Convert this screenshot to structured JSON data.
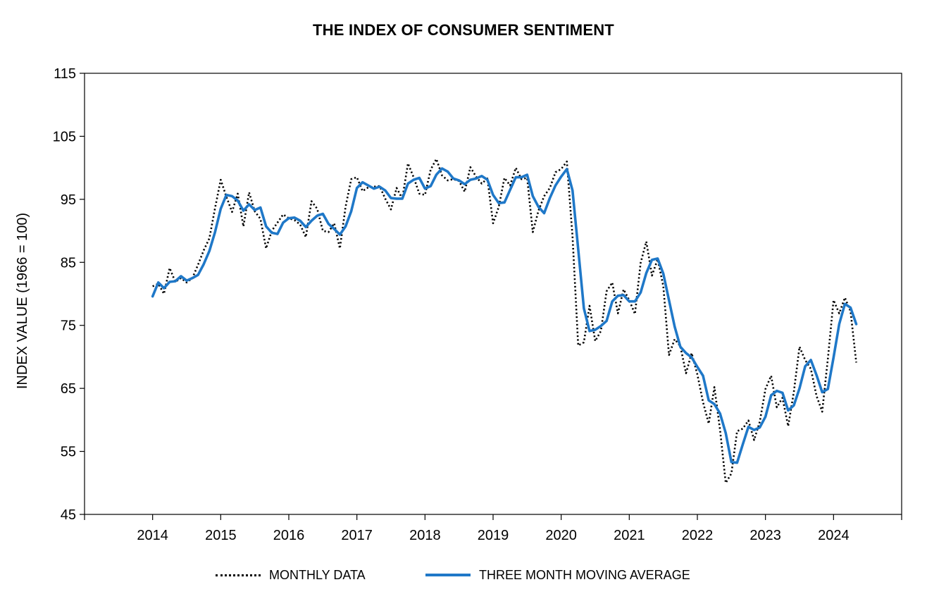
{
  "chart_data": {
    "type": "line",
    "title": "THE INDEX OF CONSUMER SENTIMENT",
    "ylabel": "INDEX VALUE (1966 = 100)",
    "xlabel": "",
    "ylim": [
      45,
      115
    ],
    "xlim": [
      2013.0,
      2025.0
    ],
    "yticks": [
      "45",
      "55",
      "65",
      "75",
      "85",
      "95",
      "105",
      "115"
    ],
    "xticks": [
      "2014",
      "2015",
      "2016",
      "2017",
      "2018",
      "2019",
      "2020",
      "2021",
      "2022",
      "2023",
      "2024"
    ],
    "grid": false,
    "legend_position": "bottom",
    "colors": {
      "monthly": "#000000",
      "moving_average": "#1f78c8"
    },
    "series": [
      {
        "name": "MONTHLY DATA",
        "style": "dotted",
        "color": "#000000",
        "x_start": "2014-01",
        "values": [
          81.2,
          81.6,
          80.0,
          84.1,
          81.9,
          82.5,
          81.8,
          82.5,
          84.6,
          86.9,
          88.8,
          93.6,
          98.1,
          95.4,
          93.0,
          95.9,
          90.7,
          96.1,
          93.1,
          91.9,
          87.2,
          90.0,
          91.3,
          92.6,
          92.0,
          91.7,
          91.0,
          89.0,
          94.7,
          93.5,
          90.0,
          89.8,
          91.2,
          87.2,
          93.8,
          98.2,
          98.5,
          96.3,
          96.9,
          97.0,
          97.1,
          95.1,
          93.4,
          96.8,
          95.1,
          100.7,
          98.5,
          95.9,
          95.7,
          99.7,
          101.4,
          98.8,
          98.0,
          98.2,
          97.9,
          96.2,
          100.1,
          98.6,
          97.5,
          98.3,
          91.2,
          93.8,
          98.4,
          97.2,
          100.0,
          98.2,
          98.4,
          89.8,
          93.2,
          95.5,
          96.8,
          99.3,
          99.8,
          101.0,
          89.1,
          71.8,
          72.3,
          78.1,
          72.5,
          74.1,
          80.4,
          81.8,
          76.9,
          80.7,
          79.0,
          76.8,
          84.9,
          88.3,
          82.9,
          85.5,
          81.2,
          70.3,
          72.8,
          71.7,
          67.4,
          70.6,
          67.2,
          62.8,
          59.4,
          65.2,
          58.4,
          50.0,
          51.5,
          58.2,
          58.6,
          59.9,
          56.8,
          59.7,
          64.9,
          67.0,
          62.0,
          63.5,
          59.0,
          64.4,
          71.6,
          69.5,
          68.1,
          63.8,
          61.3,
          69.7,
          79.0,
          76.9,
          79.4,
          77.2,
          69.1
        ]
      },
      {
        "name": "THREE MONTH MOVING AVERAGE",
        "style": "solid",
        "color": "#1f78c8",
        "x_start": "2014-01",
        "values": [
          79.6,
          81.8,
          80.9,
          81.9,
          82.0,
          82.8,
          82.1,
          82.5,
          83.0,
          84.7,
          86.8,
          89.8,
          93.5,
          95.7,
          95.5,
          94.8,
          93.2,
          94.2,
          93.3,
          93.7,
          90.7,
          89.7,
          89.5,
          91.3,
          92.0,
          92.1,
          91.6,
          90.6,
          91.6,
          92.4,
          92.7,
          91.1,
          90.3,
          89.4,
          90.7,
          93.1,
          96.8,
          97.7,
          97.2,
          96.7,
          97.0,
          96.4,
          95.2,
          95.1,
          95.1,
          97.5,
          98.1,
          98.4,
          96.7,
          97.1,
          98.9,
          99.9,
          99.4,
          98.3,
          98.0,
          97.4,
          98.1,
          98.3,
          98.7,
          98.1,
          95.7,
          94.4,
          94.5,
          96.5,
          98.5,
          98.5,
          98.9,
          95.5,
          93.8,
          92.8,
          95.2,
          97.2,
          98.6,
          99.8,
          96.4,
          87.1,
          77.7,
          74.1,
          74.3,
          74.9,
          75.7,
          78.8,
          79.7,
          79.8,
          78.8,
          78.8,
          80.2,
          83.3,
          85.4,
          85.6,
          83.2,
          79.0,
          74.8,
          71.6,
          70.6,
          69.9,
          68.4,
          67.0,
          63.1,
          62.5,
          61.0,
          57.9,
          53.3,
          53.2,
          56.1,
          58.9,
          58.4,
          58.8,
          60.5,
          63.9,
          64.6,
          64.3,
          61.5,
          62.3,
          65.0,
          68.5,
          69.5,
          67.1,
          64.4,
          64.9,
          69.9,
          75.2,
          78.4,
          77.8,
          75.2
        ]
      }
    ]
  },
  "legend": {
    "monthly_label": "MONTHLY DATA",
    "average_label": "THREE MONTH MOVING AVERAGE"
  }
}
